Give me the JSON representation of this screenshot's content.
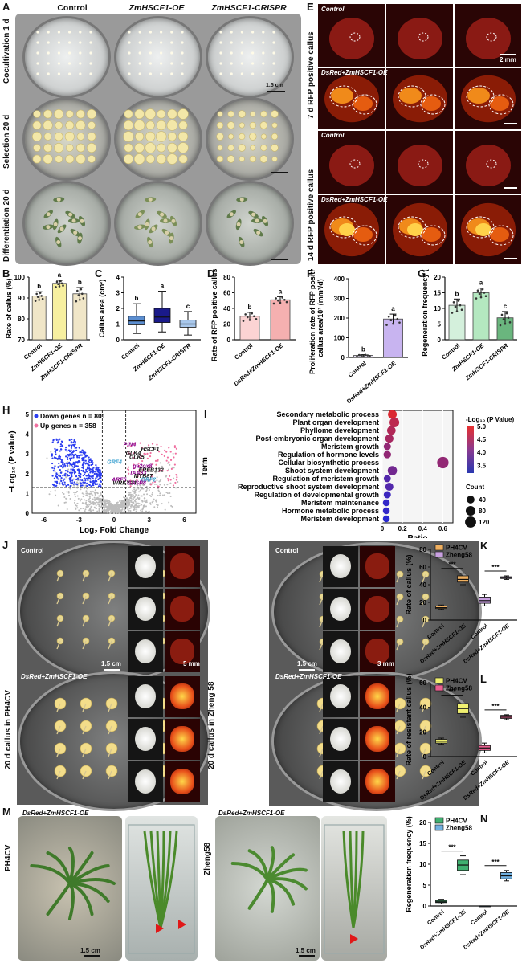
{
  "figure": {
    "panel_letters": {
      "A": "A",
      "B": "B",
      "C": "C",
      "D": "D",
      "E": "E",
      "F": "F",
      "G": "G",
      "H": "H",
      "I": "I",
      "J": "J",
      "K": "K",
      "L": "L",
      "M": "M",
      "N": "N"
    },
    "panelA": {
      "col_titles": [
        "Control",
        "ZmHSCF1-OE",
        "ZmHSCF1-CRISPR"
      ],
      "row_labels": [
        "Cocultivation 1 d",
        "Selection 20 d",
        "Differentiation 20 d"
      ],
      "scale": "1.5 cm"
    },
    "panelE": {
      "row_labels": [
        "7 d RFP positive callus",
        "14 d RFP positive callus"
      ],
      "image_labels": [
        "Control",
        "DsRed+ZmHSCF1-OE",
        "Control",
        "DsRed+ZmHSCF1-OE"
      ],
      "scale": "2 mm"
    },
    "panelJ": {
      "row_label_1": "20 d callus in PH4CV",
      "row_label_2": "20 d callus in Zheng 58",
      "labels": [
        "Control",
        "DsRed+ZmHSCF1-OE",
        "Control",
        "DsRed+ZmHSCF1-OE"
      ],
      "scales": [
        "1.5 cm",
        "5 mm",
        "1.5 cm",
        "3 mm"
      ]
    },
    "panelM": {
      "labels": [
        "DsRed+ZmHSCF1-OE",
        "DsRed+ZmHSCF1-OE"
      ],
      "side_labels": [
        "PH4CV",
        "Zheng58"
      ],
      "scales": [
        "1.5 cm",
        "1.5 cm"
      ]
    }
  },
  "chart_data": [
    {
      "id": "B",
      "type": "bar",
      "ylabel": "Rate of callus (%)",
      "ylim": [
        70,
        100
      ],
      "yticks": [
        70,
        80,
        90,
        100
      ],
      "categories": [
        "Control",
        "ZmHSCF1-OE",
        "ZmHSCF1-CRISPR"
      ],
      "values": [
        91,
        97,
        92
      ],
      "errors": [
        2,
        1.5,
        3
      ],
      "letters": [
        "b",
        "a",
        "b"
      ],
      "colors": [
        "#f0e6c8",
        "#f7f0a0",
        "#f0e6c8"
      ]
    },
    {
      "id": "C",
      "type": "box",
      "ylabel": "Callus area (cm²)",
      "ylim": [
        0,
        4
      ],
      "yticks": [
        0,
        1,
        2,
        3,
        4
      ],
      "categories": [
        "Control",
        "ZmHSCF1-OE",
        "ZmHSCF1-CRISPR"
      ],
      "boxes": [
        {
          "min": 0.4,
          "q1": 0.95,
          "median": 1.2,
          "q3": 1.5,
          "max": 2.3
        },
        {
          "min": 0.5,
          "q1": 1.1,
          "median": 1.45,
          "q3": 2.0,
          "max": 3.1
        },
        {
          "min": 0.3,
          "q1": 0.8,
          "median": 1.0,
          "q3": 1.25,
          "max": 1.8
        }
      ],
      "letters": [
        "b",
        "a",
        "c"
      ],
      "colors": [
        "#5b8ed0",
        "#1a1a8a",
        "#a9c8ec"
      ]
    },
    {
      "id": "D",
      "type": "bar",
      "ylabel": "Rate of RFP positive callus (%)",
      "ylim": [
        0,
        80
      ],
      "yticks": [
        0,
        20,
        40,
        60,
        80
      ],
      "categories": [
        "Control",
        "DsRed+ZmHSCF1-OE"
      ],
      "values": [
        30,
        51
      ],
      "errors": [
        5,
        4
      ],
      "letters": [
        "b",
        "a"
      ],
      "colors": [
        "#fbd3d3",
        "#f5b0b0"
      ]
    },
    {
      "id": "F",
      "type": "bar",
      "ylabel": "Proliferation rate of RFP positive callus area/10² (mm²/d)",
      "ylim": [
        0,
        400
      ],
      "yticks": [
        0,
        100,
        200,
        300,
        400
      ],
      "categories": [
        "Control",
        "DsRed+ZmHSCF1-OE"
      ],
      "values": [
        10,
        195
      ],
      "errors": [
        4,
        25
      ],
      "letters": [
        "b",
        "a"
      ],
      "colors": [
        "#e8e0f5",
        "#c8b4f0"
      ]
    },
    {
      "id": "G",
      "type": "bar",
      "ylabel": "Regeneration frequency (%)",
      "ylim": [
        0,
        20
      ],
      "yticks": [
        0,
        5,
        10,
        15,
        20
      ],
      "categories": [
        "Control",
        "ZmHSCF1-OE",
        "ZmHSCF1-CRISPR"
      ],
      "values": [
        11,
        15,
        7
      ],
      "errors": [
        2,
        1.5,
        2
      ],
      "letters": [
        "b",
        "a",
        "c"
      ],
      "colors": [
        "#d4f0dc",
        "#b4e8c0",
        "#6ab67e"
      ]
    },
    {
      "id": "H",
      "type": "scatter",
      "title": "",
      "xlabel": "Log₂ Fold Change",
      "ylabel": "−Log₁₀ (P value)",
      "xlim": [
        -7,
        7
      ],
      "ylim": [
        0,
        5.2
      ],
      "xticks": [
        -6,
        -3,
        0,
        3,
        6
      ],
      "yticks": [
        0,
        1,
        2,
        3,
        4,
        5
      ],
      "legend": [
        "Down genes n = 801",
        "Up genes n = 358"
      ],
      "gene_labels": [
        {
          "name": "PIN4",
          "x": 0.8,
          "y": 3.4,
          "color": "#8b008b"
        },
        {
          "name": "HSCF1",
          "x": 2.3,
          "y": 3.15,
          "color": "#111111"
        },
        {
          "name": "GLK4",
          "x": 1.0,
          "y": 2.95,
          "color": "#111111"
        },
        {
          "name": "GLK5",
          "x": 1.3,
          "y": 2.75,
          "color": "#111111"
        },
        {
          "name": "GRF4",
          "x": -0.6,
          "y": 2.5,
          "color": "#3aa0d0"
        },
        {
          "name": "ga2ox8",
          "x": 1.6,
          "y": 2.3,
          "color": "#8b008b"
        },
        {
          "name": "EREB132",
          "x": 2.1,
          "y": 2.1,
          "color": "#111111"
        },
        {
          "name": "IAA33",
          "x": 1.4,
          "y": 1.95,
          "color": "#8b008b"
        },
        {
          "name": "MYB87",
          "x": 1.7,
          "y": 1.78,
          "color": "#111111"
        },
        {
          "name": "GRF2",
          "x": 2.3,
          "y": 1.6,
          "color": "#3aa0d0"
        },
        {
          "name": "ARF5",
          "x": -0.2,
          "y": 1.6,
          "color": "#8b008b"
        },
        {
          "name": "WRKY24",
          "x": -0.1,
          "y": 1.45,
          "color": "#111111"
        },
        {
          "name": "GASP8",
          "x": 1.1,
          "y": 1.45,
          "color": "#8b008b"
        }
      ]
    },
    {
      "id": "I",
      "type": "dot",
      "xlabel": "Ratio",
      "ylabel": "Term",
      "xlim": [
        0,
        0.7
      ],
      "xticks": [
        0,
        0.2,
        0.4,
        0.6
      ],
      "terms": [
        "Secondary metabolic process",
        "Plant organ development",
        "Phyllome development",
        "Post-embryonic organ development",
        "Meristem growth",
        "Regulation of hormone levels",
        "Cellular biosynthetic process",
        "Shoot system development",
        "Regulation of meristem growth",
        "Reproductive shoot system development",
        "Regulation of developmental growth",
        "Meristem maintenance",
        "Hormone metabolic process",
        "Meristem development"
      ],
      "ratio": [
        0.1,
        0.12,
        0.09,
        0.07,
        0.05,
        0.05,
        0.6,
        0.1,
        0.05,
        0.07,
        0.05,
        0.04,
        0.04,
        0.04
      ],
      "neglog10p": [
        4.9,
        4.6,
        4.5,
        4.4,
        4.2,
        4.2,
        4.2,
        3.9,
        3.6,
        3.6,
        3.4,
        3.3,
        3.3,
        3.2
      ],
      "count": [
        60,
        80,
        55,
        50,
        30,
        35,
        130,
        70,
        28,
        45,
        30,
        25,
        25,
        25
      ],
      "color_legend_title": "-Log₁₀ (P Value)",
      "color_ticks": [
        3.5,
        4.0,
        4.5,
        5.0
      ],
      "size_legend_title": "Count",
      "size_ticks": [
        40,
        80,
        120
      ]
    },
    {
      "id": "K",
      "type": "box",
      "ylabel": "Rate of callus (%)",
      "ylim": [
        0,
        80
      ],
      "yticks": [
        0,
        20,
        40,
        60,
        80
      ],
      "legend": [
        "PH4CV",
        "Zheng58"
      ],
      "categories": [
        "Control",
        "DsRed+ZmHSCF1-OE",
        "Control",
        "DsRed+ZmHSCF1-OE"
      ],
      "boxes": [
        {
          "min": 12,
          "q1": 13,
          "median": 14,
          "q3": 16,
          "max": 17
        },
        {
          "min": 40,
          "q1": 43,
          "median": 46,
          "q3": 50,
          "max": 53
        },
        {
          "min": 16,
          "q1": 19,
          "median": 22,
          "q3": 26,
          "max": 29
        },
        {
          "min": 46,
          "q1": 47,
          "median": 48,
          "q3": 49,
          "max": 50
        }
      ],
      "significance": [
        "***",
        "***"
      ],
      "colors": [
        "#f0b060",
        "#f0b060",
        "#c8a0e0",
        "#c8a0e0"
      ]
    },
    {
      "id": "L",
      "type": "box",
      "ylabel": "Rate of resistant callus (%)",
      "ylim": [
        0,
        60
      ],
      "yticks": [
        0,
        20,
        40,
        60
      ],
      "legend": [
        "PH4CV",
        "Zheng58"
      ],
      "categories": [
        "Control",
        "DsRed+ZmHSCF1-OE",
        "Control",
        "DsRed+ZmHSCF1-OE"
      ],
      "boxes": [
        {
          "min": 10,
          "q1": 11,
          "median": 12.5,
          "q3": 14,
          "max": 15
        },
        {
          "min": 32,
          "q1": 35,
          "median": 39,
          "q3": 43,
          "max": 46
        },
        {
          "min": 3,
          "q1": 5,
          "median": 7,
          "q3": 9,
          "max": 11
        },
        {
          "min": 30,
          "q1": 31,
          "median": 32,
          "q3": 33.5,
          "max": 34
        }
      ],
      "significance": [
        "***",
        "***"
      ],
      "colors": [
        "#f0f070",
        "#f0f070",
        "#e86090",
        "#e86090"
      ]
    },
    {
      "id": "N",
      "type": "box",
      "ylabel": "Regeneration frequency (%)",
      "ylim": [
        0,
        20
      ],
      "yticks": [
        0,
        5,
        10,
        15,
        20
      ],
      "legend": [
        "PH4CV",
        "Zheng58"
      ],
      "categories": [
        "Control",
        "DsRed+ZmHSCF1-OE",
        "Control",
        "DsRed+ZmHSCF1-OE"
      ],
      "boxes": [
        {
          "min": 0.5,
          "q1": 0.8,
          "median": 1,
          "q3": 1.3,
          "max": 1.6
        },
        {
          "min": 7.5,
          "q1": 8.5,
          "median": 9.8,
          "q3": 11,
          "max": 12
        },
        {
          "min": 0,
          "q1": 0,
          "median": 0,
          "q3": 0,
          "max": 0
        },
        {
          "min": 6,
          "q1": 6.5,
          "median": 7.2,
          "q3": 8,
          "max": 8.5
        }
      ],
      "significance": [
        "***",
        "***"
      ],
      "colors": [
        "#40b070",
        "#40b070",
        "#70b0e0",
        "#70b0e0"
      ]
    }
  ]
}
